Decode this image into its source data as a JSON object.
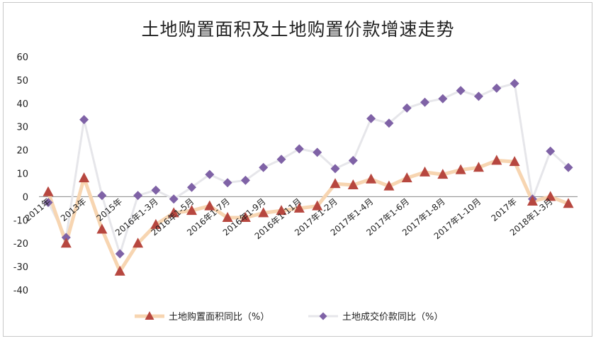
{
  "chart_data": {
    "type": "line",
    "title": "土地购置面积及土地购置价款增速走势",
    "xlabel": "",
    "ylabel": "",
    "ylim": [
      -40,
      60
    ],
    "yticks": [
      60,
      50,
      40,
      30,
      20,
      10,
      0,
      -10,
      -20,
      -30,
      -40
    ],
    "grid": false,
    "legend_position": "bottom",
    "x_tick_labels": [
      {
        "index": 0,
        "label": "2011年"
      },
      {
        "index": 2,
        "label": "2013年"
      },
      {
        "index": 4,
        "label": "2015年"
      },
      {
        "index": 6,
        "label": "2016年1-3月"
      },
      {
        "index": 8,
        "label": "2016年1-5月"
      },
      {
        "index": 10,
        "label": "2016年1-7月"
      },
      {
        "index": 12,
        "label": "2016年1-9月"
      },
      {
        "index": 14,
        "label": "2016年1-11月"
      },
      {
        "index": 16,
        "label": "2017年1-2月"
      },
      {
        "index": 18,
        "label": "2017年1-4月"
      },
      {
        "index": 20,
        "label": "2017年1-6月"
      },
      {
        "index": 22,
        "label": "2017年1-8月"
      },
      {
        "index": 24,
        "label": "2017年1-10月"
      },
      {
        "index": 26,
        "label": "2017年"
      },
      {
        "index": 28,
        "label": "2018年1-3月"
      }
    ],
    "series": [
      {
        "name": "土地购置面积同比（%）",
        "color": "#f7d5b1",
        "marker_color": "#b7473f",
        "marker": "triangle",
        "values": [
          2,
          -20,
          8,
          -14,
          -32,
          -20,
          -12,
          -7,
          -6,
          -4,
          -9,
          -9,
          -7,
          -6,
          -5,
          -4,
          5.5,
          5,
          7.5,
          4.5,
          8,
          10.5,
          9.5,
          11.5,
          12.5,
          15.5,
          15,
          -2,
          0,
          -3
        ]
      },
      {
        "name": "土地成交价款同比（%）",
        "color": "#e6e6ea",
        "marker_color": "#7f62a6",
        "marker": "diamond",
        "values": [
          -2.5,
          -17.5,
          33,
          0.5,
          -24.5,
          0.5,
          2.8,
          -1,
          4,
          9.5,
          6,
          7,
          12.5,
          16,
          20.5,
          19,
          12,
          15.5,
          33.5,
          31.5,
          38,
          40.5,
          42,
          45.5,
          43,
          46.5,
          48.5,
          -1,
          19.5,
          12.5
        ]
      }
    ]
  }
}
